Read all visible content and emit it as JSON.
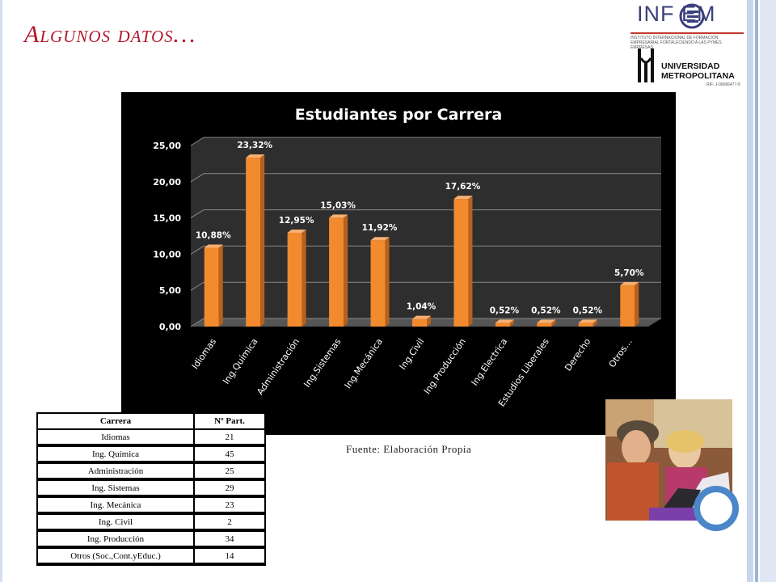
{
  "slide": {
    "title": "Algunos datos…",
    "source": "Fuente: Elaboración Propia"
  },
  "logos": {
    "infoem_name": "INF EM",
    "infoem_sub": "INSTITUTO INTERNACIONAL DE FORMACIÓN EMPRESARIAL\nFORTALECIENDO A LAS PYMES EMPRESAS",
    "um_name_line1": "UNIVERSIDAD",
    "um_name_line2": "METROPOLITANA",
    "um_rif": "RIF: J-00066477-9"
  },
  "chart_data": {
    "type": "bar",
    "title": "Estudiantes por Carrera",
    "categories": [
      "Idiomas",
      "Ing.Química",
      "Administración",
      "Ing.Sistemas",
      "Ing.Mecánica",
      "Ing.Civil",
      "Ing.Producción",
      "Ing.Electrica",
      "Estudios Liberales",
      "Derecho",
      "Otros…"
    ],
    "values": [
      10.88,
      23.32,
      12.95,
      15.03,
      11.92,
      1.04,
      17.62,
      0.52,
      0.52,
      0.52,
      5.7
    ],
    "data_labels": [
      "10,88%",
      "23,32%",
      "12,95%",
      "15,03%",
      "11,92%",
      "1,04%",
      "17,62%",
      "0,52%",
      "0,52%",
      "0,52%",
      "5,70%"
    ],
    "y_ticks": [
      0,
      5,
      10,
      15,
      20,
      25
    ],
    "y_tick_labels": [
      "0,00",
      "5,00",
      "10,00",
      "15,00",
      "20,00",
      "25,00"
    ],
    "ylim": [
      0,
      25
    ],
    "grid": true,
    "bar_color": "#f28a2e",
    "background": "#000000",
    "xlabel": "",
    "ylabel": ""
  },
  "table": {
    "headers": [
      "Carrera",
      "Nº Part."
    ],
    "rows": [
      [
        "Idiomas",
        "21"
      ],
      [
        "Ing. Química",
        "45"
      ],
      [
        "Administración",
        "25"
      ],
      [
        "Ing. Sistemas",
        "29"
      ],
      [
        "Ing. Mecánica",
        "23"
      ],
      [
        "Ing. Civil",
        "2"
      ],
      [
        "Ing. Producción",
        "34"
      ],
      [
        "Otros (Soc.,Cont.yEduc.)",
        "14"
      ]
    ]
  },
  "colors": {
    "title": "#b3182c",
    "accent_blue": "#4a86c8"
  }
}
